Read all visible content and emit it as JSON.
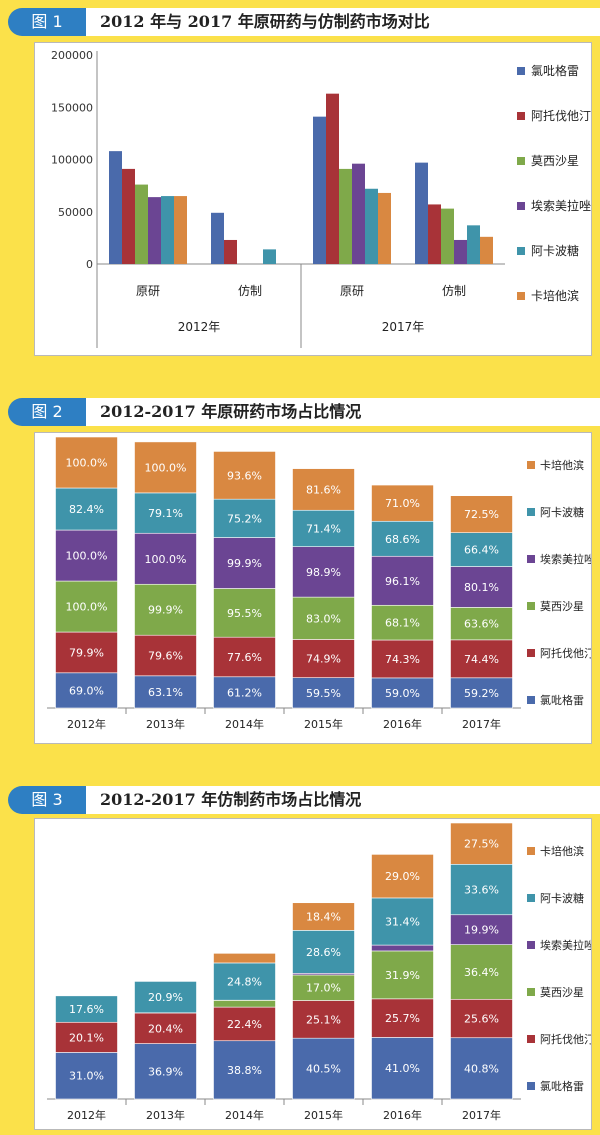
{
  "panels": [
    {
      "tab": "图 1",
      "title": "2012 年与 2017 年原研药与仿制药市场对比"
    },
    {
      "tab": "图 2",
      "title": "2012-2017 年原研药市场占比情况"
    },
    {
      "tab": "图 3",
      "title": "2012-2017 年仿制药市场占比情况"
    }
  ],
  "colors": {
    "氯吡格雷": "#4a6aab",
    "阿托伐他汀": "#a83338",
    "莫西沙星": "#7fa94a",
    "埃索美拉唑": "#6b4593",
    "阿卡波糖": "#3f94aa",
    "卡培他滨": "#d98841"
  },
  "chart_data": [
    {
      "type": "bar",
      "title": "2012 年与 2017 年原研药与仿制药市场对比",
      "categories": [
        "原研",
        "仿制",
        "原研",
        "仿制"
      ],
      "groups": [
        "2012年",
        "2017年"
      ],
      "yticks": [
        "200000",
        "150000",
        "100000",
        "50000",
        "0"
      ],
      "ylim": [
        0,
        200000
      ],
      "legend_position": "right",
      "series": [
        {
          "name": "氯吡格雷",
          "values": [
            108000,
            49000,
            141000,
            97000
          ]
        },
        {
          "name": "阿托伐他汀",
          "values": [
            91000,
            23000,
            163000,
            57000
          ]
        },
        {
          "name": "莫西沙星",
          "values": [
            76000,
            0,
            91000,
            53000
          ]
        },
        {
          "name": "埃索美拉唑",
          "values": [
            64000,
            0,
            96000,
            23000
          ]
        },
        {
          "name": "阿卡波糖",
          "values": [
            65000,
            14000,
            72000,
            37000
          ]
        },
        {
          "name": "卡培他滨",
          "values": [
            65000,
            0,
            68000,
            26000
          ]
        }
      ]
    },
    {
      "type": "bar",
      "stacked": true,
      "title": "2012-2017 年原研药市场占比情况",
      "categories": [
        "2012年",
        "2013年",
        "2014年",
        "2015年",
        "2016年",
        "2017年"
      ],
      "legend_position": "right",
      "series": [
        {
          "name": "氯吡格雷",
          "values": [
            69.0,
            63.1,
            61.2,
            59.5,
            59.0,
            59.2
          ],
          "labels": [
            "69.0%",
            "63.1%",
            "61.2%",
            "59.5%",
            "59.0%",
            "59.2%"
          ]
        },
        {
          "name": "阿托伐他汀",
          "values": [
            79.9,
            79.6,
            77.6,
            74.9,
            74.3,
            74.4
          ],
          "labels": [
            "79.9%",
            "79.6%",
            "77.6%",
            "74.9%",
            "74.3%",
            "74.4%"
          ]
        },
        {
          "name": "莫西沙星",
          "values": [
            100.0,
            99.9,
            95.5,
            83.0,
            68.1,
            63.6
          ],
          "labels": [
            "100.0%",
            "99.9%",
            "95.5%",
            "83.0%",
            "68.1%",
            "63.6%"
          ]
        },
        {
          "name": "埃索美拉唑",
          "values": [
            100.0,
            100.0,
            99.9,
            98.9,
            96.1,
            80.1
          ],
          "labels": [
            "100.0%",
            "100.0%",
            "99.9%",
            "98.9%",
            "96.1%",
            "80.1%"
          ]
        },
        {
          "name": "阿卡波糖",
          "values": [
            82.4,
            79.1,
            75.2,
            71.4,
            68.6,
            66.4
          ],
          "labels": [
            "82.4%",
            "79.1%",
            "75.2%",
            "71.4%",
            "68.6%",
            "66.4%"
          ]
        },
        {
          "name": "卡培他滨",
          "values": [
            100.0,
            100.0,
            93.6,
            81.6,
            71.0,
            72.5
          ],
          "labels": [
            "100.0%",
            "100.0%",
            "93.6%",
            "81.6%",
            "71.0%",
            "72.5%"
          ]
        }
      ]
    },
    {
      "type": "bar",
      "stacked": true,
      "title": "2012-2017 年仿制药市场占比情况",
      "categories": [
        "2012年",
        "2013年",
        "2014年",
        "2015年",
        "2016年",
        "2017年"
      ],
      "legend_position": "right",
      "series": [
        {
          "name": "氯吡格雷",
          "values": [
            31.0,
            36.9,
            38.8,
            40.5,
            41.0,
            40.8
          ],
          "labels": [
            "31.0%",
            "36.9%",
            "38.8%",
            "40.5%",
            "41.0%",
            "40.8%"
          ]
        },
        {
          "name": "阿托伐他汀",
          "values": [
            20.1,
            20.4,
            22.4,
            25.1,
            25.7,
            25.6
          ],
          "labels": [
            "20.1%",
            "20.4%",
            "22.4%",
            "25.1%",
            "25.7%",
            "25.6%"
          ]
        },
        {
          "name": "莫西沙星",
          "values": [
            0,
            0,
            4.5,
            17.0,
            31.9,
            36.4
          ],
          "labels": [
            "",
            "",
            "4.5%",
            "17.0%",
            "31.9%",
            "36.4%"
          ]
        },
        {
          "name": "埃索美拉唑",
          "values": [
            0,
            0.1,
            0.1,
            1.1,
            3.9,
            19.9
          ],
          "labels": [
            "",
            "0.1%",
            "0.1%",
            "1.1%",
            "3.9%",
            "19.9%"
          ]
        },
        {
          "name": "阿卡波糖",
          "values": [
            17.6,
            20.9,
            24.8,
            28.6,
            31.4,
            33.6
          ],
          "labels": [
            "17.6%",
            "20.9%",
            "24.8%",
            "28.6%",
            "31.4%",
            "33.6%"
          ]
        },
        {
          "name": "卡培他滨",
          "values": [
            0,
            0,
            6.4,
            18.4,
            29.0,
            27.5
          ],
          "labels": [
            "",
            "",
            "6.4%",
            "18.4%",
            "29.0%",
            "27.5%"
          ]
        }
      ]
    }
  ]
}
